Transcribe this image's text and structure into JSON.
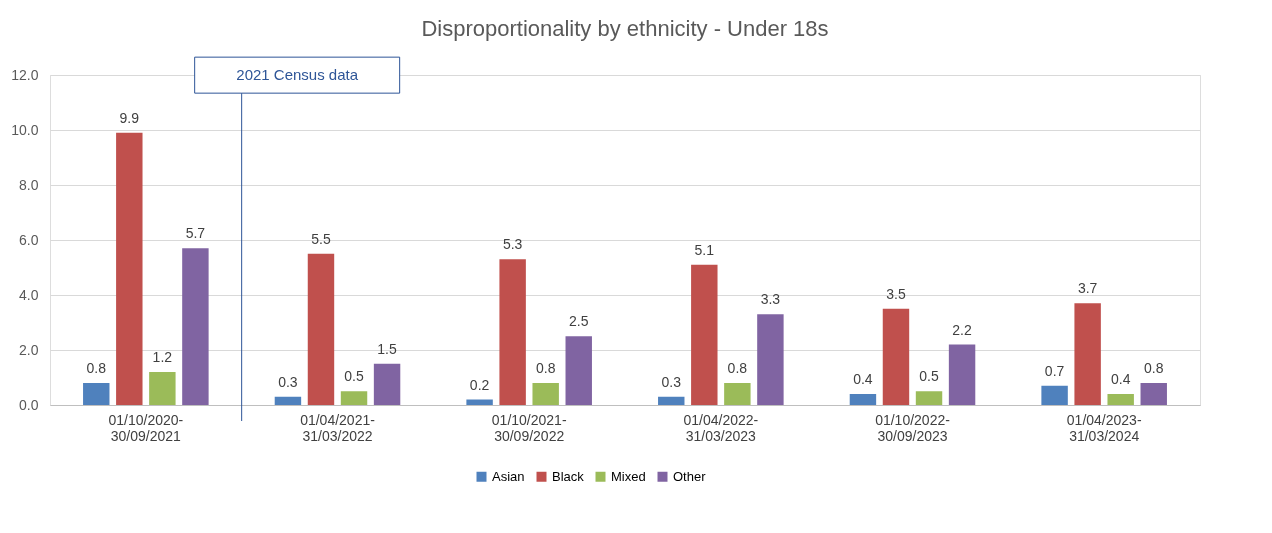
{
  "chart_data": {
    "type": "bar",
    "title": "Disproportionality by ethnicity - Under 18s",
    "categories": [
      "01/10/2020-30/09/2021",
      "01/04/2021-31/03/2022",
      "01/10/2021-30/09/2022",
      "01/04/2022-31/03/2023",
      "01/10/2022-30/09/2023",
      "01/04/2023-31/03/2024"
    ],
    "series": [
      {
        "name": "Asian",
        "color": "#4f81bd",
        "values": [
          0.8,
          0.3,
          0.2,
          0.3,
          0.4,
          0.7
        ]
      },
      {
        "name": "Black",
        "color": "#c0504d",
        "values": [
          9.9,
          5.5,
          5.3,
          5.1,
          3.5,
          3.7
        ]
      },
      {
        "name": "Mixed",
        "color": "#9bbb59",
        "values": [
          1.2,
          0.5,
          0.8,
          0.8,
          0.5,
          0.4
        ]
      },
      {
        "name": "Other",
        "color": "#8064a2",
        "values": [
          5.7,
          1.5,
          2.5,
          3.3,
          2.2,
          0.8
        ]
      }
    ],
    "ylim": [
      0,
      12
    ],
    "yticks": [
      {
        "value": 0,
        "label": "0.0"
      },
      {
        "value": 2,
        "label": "2.0"
      },
      {
        "value": 4,
        "label": "4.0"
      },
      {
        "value": 6,
        "label": "6.0"
      },
      {
        "value": 8,
        "label": "8.0"
      },
      {
        "value": 10,
        "label": "10.0"
      },
      {
        "value": 12,
        "label": "12.0"
      }
    ],
    "grid": "y",
    "legend": "bottom",
    "data_labels": true,
    "annotations": [
      "2021 Census data"
    ]
  }
}
